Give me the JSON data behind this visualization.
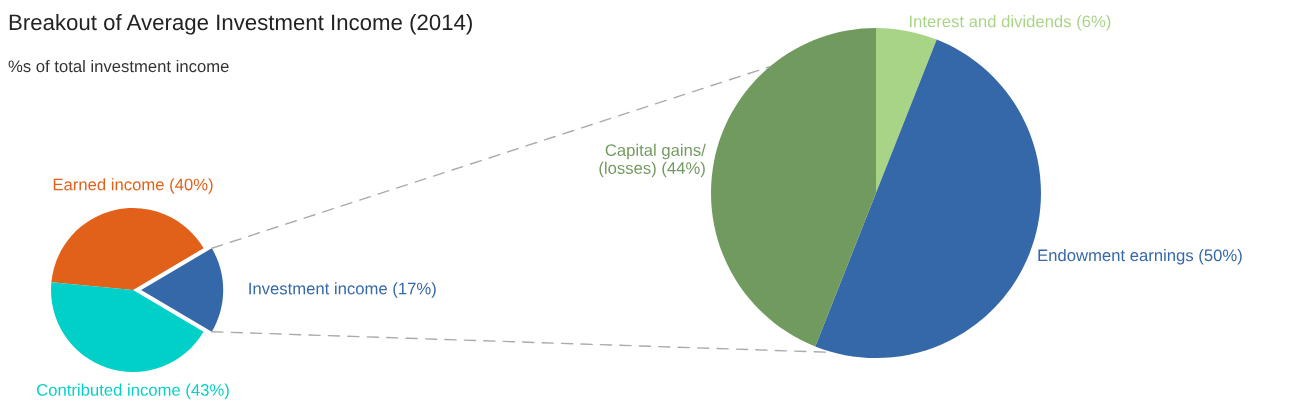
{
  "chart_data": [
    {
      "type": "pie",
      "title": "Breakout of Average Investment Income (2014)",
      "subtitle": "%s of total investment income",
      "categories": [
        "Earned income (40%)",
        "Investment income (17%)",
        "Contributed income (43%)"
      ],
      "values": [
        40,
        17,
        43
      ],
      "colors": [
        "#e2611a",
        "#3568a8",
        "#00d0c8"
      ]
    },
    {
      "type": "pie",
      "categories": [
        "Interest and dividends (6%)",
        "Endowment earnings (50%)",
        "Capital gains/\n(losses) (44%)"
      ],
      "values": [
        6,
        50,
        44
      ],
      "colors": [
        "#a8d585",
        "#3568a8",
        "#719a5e"
      ]
    }
  ]
}
